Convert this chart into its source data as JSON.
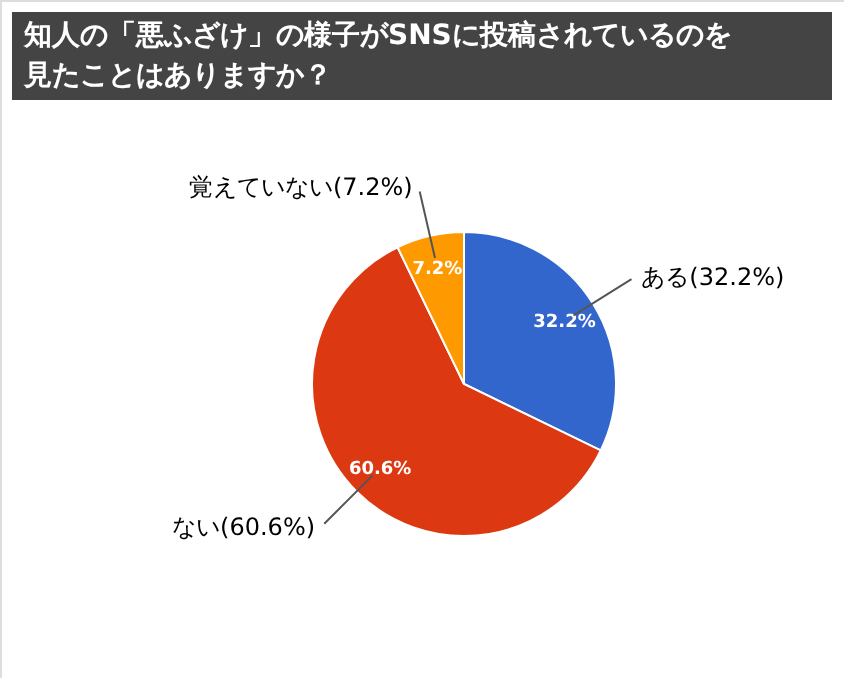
{
  "chart_data": {
    "type": "pie",
    "title": "知人の「悪ふざけ」の様子がSNSに投稿されているのを見たことはありますか？",
    "categories": [
      "ある(32.2%)",
      "ない(60.6%)",
      "覚えていない(7.2%)"
    ],
    "values": [
      32.2,
      60.6,
      7.2
    ],
    "colors": [
      "#3366cc",
      "#dc3912",
      "#ff9900"
    ],
    "value_labels": [
      "32.2%",
      "60.6%",
      "7.2%"
    ]
  }
}
